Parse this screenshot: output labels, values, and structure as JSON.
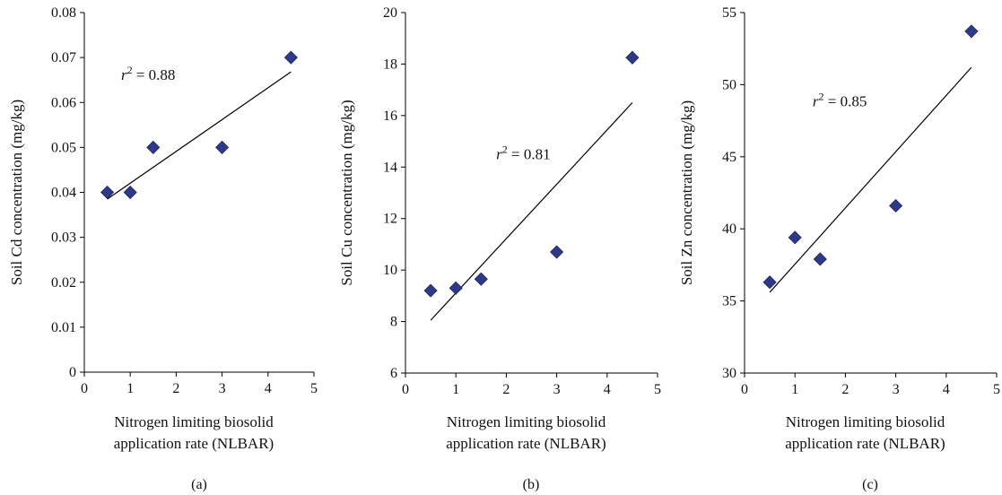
{
  "figure": {
    "panel_labels": [
      "(a)",
      "(b)",
      "(c)"
    ]
  },
  "chart_data": [
    {
      "type": "scatter",
      "panel": "(a)",
      "title": "",
      "xlabel": [
        "Nitrogen limiting biosolid",
        "application rate (NLBAR)"
      ],
      "ylabel": "Soil Cd concentration (mg/kg)",
      "xlim": [
        0,
        5
      ],
      "ylim": [
        0,
        0.08
      ],
      "xticks": [
        "0",
        "1",
        "2",
        "3",
        "4",
        "5"
      ],
      "yticks": [
        "0",
        "0.01",
        "0.02",
        "0.03",
        "0.04",
        "0.05",
        "0.06",
        "0.07",
        "0.08"
      ],
      "points": [
        {
          "x": 0.5,
          "y": 0.04
        },
        {
          "x": 1.0,
          "y": 0.04
        },
        {
          "x": 1.5,
          "y": 0.05
        },
        {
          "x": 3.0,
          "y": 0.05
        },
        {
          "x": 4.5,
          "y": 0.07
        }
      ],
      "trendline": {
        "x": [
          0.5,
          4.5
        ],
        "y": [
          0.0385,
          0.0668
        ]
      },
      "annotation": {
        "prefix": "r",
        "exponent": "2",
        "text": " = 0.88",
        "x": 0.8,
        "y": 0.065
      },
      "marker_color": "#2e3a87",
      "grid": false
    },
    {
      "type": "scatter",
      "panel": "(b)",
      "title": "",
      "xlabel": [
        "Nitrogen limiting biosolid",
        "application rate (NLBAR)"
      ],
      "ylabel": "Soil Cu concentration (mg/kg)",
      "xlim": [
        0,
        5
      ],
      "ylim": [
        6,
        20
      ],
      "xticks": [
        "0",
        "1",
        "2",
        "3",
        "4",
        "5"
      ],
      "yticks": [
        "6",
        "8",
        "10",
        "12",
        "14",
        "16",
        "18",
        "20"
      ],
      "points": [
        {
          "x": 0.5,
          "y": 9.2
        },
        {
          "x": 1.0,
          "y": 9.3
        },
        {
          "x": 1.5,
          "y": 9.65
        },
        {
          "x": 3.0,
          "y": 10.7
        },
        {
          "x": 4.5,
          "y": 18.25
        }
      ],
      "trendline": {
        "x": [
          0.5,
          4.5
        ],
        "y": [
          8.05,
          16.5
        ]
      },
      "annotation": {
        "prefix": "r",
        "exponent": "2",
        "text": " = 0.81",
        "x": 1.8,
        "y": 14.3
      },
      "marker_color": "#2e3a87",
      "grid": false
    },
    {
      "type": "scatter",
      "panel": "(c)",
      "title": "",
      "xlabel": [
        "Nitrogen limiting biosolid",
        "application rate (NLBAR)"
      ],
      "ylabel": "Soil Zn concentration (mg/kg)",
      "xlim": [
        0,
        5
      ],
      "ylim": [
        30,
        55
      ],
      "xticks": [
        "0",
        "1",
        "2",
        "3",
        "4",
        "5"
      ],
      "yticks": [
        "30",
        "35",
        "40",
        "45",
        "50",
        "55"
      ],
      "points": [
        {
          "x": 0.5,
          "y": 36.3
        },
        {
          "x": 1.0,
          "y": 39.4
        },
        {
          "x": 1.5,
          "y": 37.9
        },
        {
          "x": 3.0,
          "y": 41.6
        },
        {
          "x": 4.5,
          "y": 53.7
        }
      ],
      "trendline": {
        "x": [
          0.5,
          4.5
        ],
        "y": [
          35.6,
          51.2
        ]
      },
      "annotation": {
        "prefix": "r",
        "exponent": "2",
        "text": " = 0.85",
        "x": 1.35,
        "y": 48.5
      },
      "marker_color": "#2e3a87",
      "grid": false
    }
  ]
}
